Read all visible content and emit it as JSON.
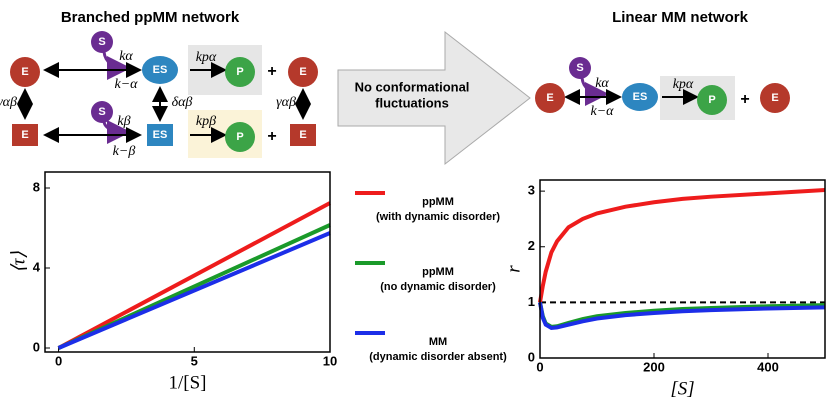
{
  "branched": {
    "title": "Branched ppMM network",
    "nodes": [
      "E",
      "S",
      "ES",
      "P",
      "+",
      "E",
      "E",
      "S",
      "ES",
      "P",
      "+",
      "E"
    ],
    "rates": [
      "kα",
      "k−α",
      "kpα",
      "γαβ",
      "δαβ",
      "γαβ",
      "kβ",
      "k−β",
      "kpβ"
    ]
  },
  "arrow_text": [
    "No conformational",
    "fluctuations"
  ],
  "linear": {
    "title": "Linear MM network",
    "nodes": [
      "E",
      "S",
      "ES",
      "P",
      "+",
      "E"
    ],
    "rates": [
      "kα",
      "k−α",
      "kpα"
    ]
  },
  "chart_data": [
    {
      "type": "line",
      "xlabel": "1/[S]",
      "ylabel": "⟨τ⟩",
      "x": [
        0,
        10
      ],
      "xlim": [
        -0.5,
        10
      ],
      "ylim": [
        -0.2,
        8.8
      ],
      "xticks": [
        0,
        5,
        10
      ],
      "yticks": [
        0,
        4,
        8
      ],
      "series": [
        {
          "name": "ppMM\n(with dynamic disorder)",
          "color": "#ee1c1c",
          "values": [
            0,
            7.25
          ]
        },
        {
          "name": "ppMM\n(no dynamic disorder)",
          "color": "#1a9a2a",
          "values": [
            0,
            6.15
          ]
        },
        {
          "name": "MM\n(dynamic disorder absent)",
          "color": "#1c2ee8",
          "values": [
            0,
            5.75
          ]
        }
      ]
    },
    {
      "type": "line",
      "xlabel": "[S]",
      "ylabel": "r",
      "x": [
        0,
        5,
        10,
        20,
        30,
        50,
        75,
        100,
        150,
        200,
        250,
        300,
        400,
        500
      ],
      "xlim": [
        0,
        500
      ],
      "ylim": [
        0,
        3.2
      ],
      "xticks": [
        0,
        200,
        400
      ],
      "yticks": [
        0,
        1,
        2,
        3
      ],
      "hline": 1,
      "series": [
        {
          "color": "#ee1c1c",
          "values": [
            1,
            1.3,
            1.55,
            1.9,
            2.1,
            2.35,
            2.5,
            2.6,
            2.72,
            2.8,
            2.86,
            2.9,
            2.96,
            3.02
          ]
        },
        {
          "color": "#1a9a2a",
          "values": [
            1,
            0.75,
            0.62,
            0.56,
            0.57,
            0.63,
            0.7,
            0.75,
            0.81,
            0.85,
            0.88,
            0.9,
            0.93,
            0.95
          ]
        },
        {
          "color": "#1c2ee8",
          "values": [
            1,
            0.72,
            0.6,
            0.54,
            0.55,
            0.6,
            0.66,
            0.71,
            0.77,
            0.81,
            0.84,
            0.86,
            0.89,
            0.91
          ]
        }
      ]
    }
  ]
}
